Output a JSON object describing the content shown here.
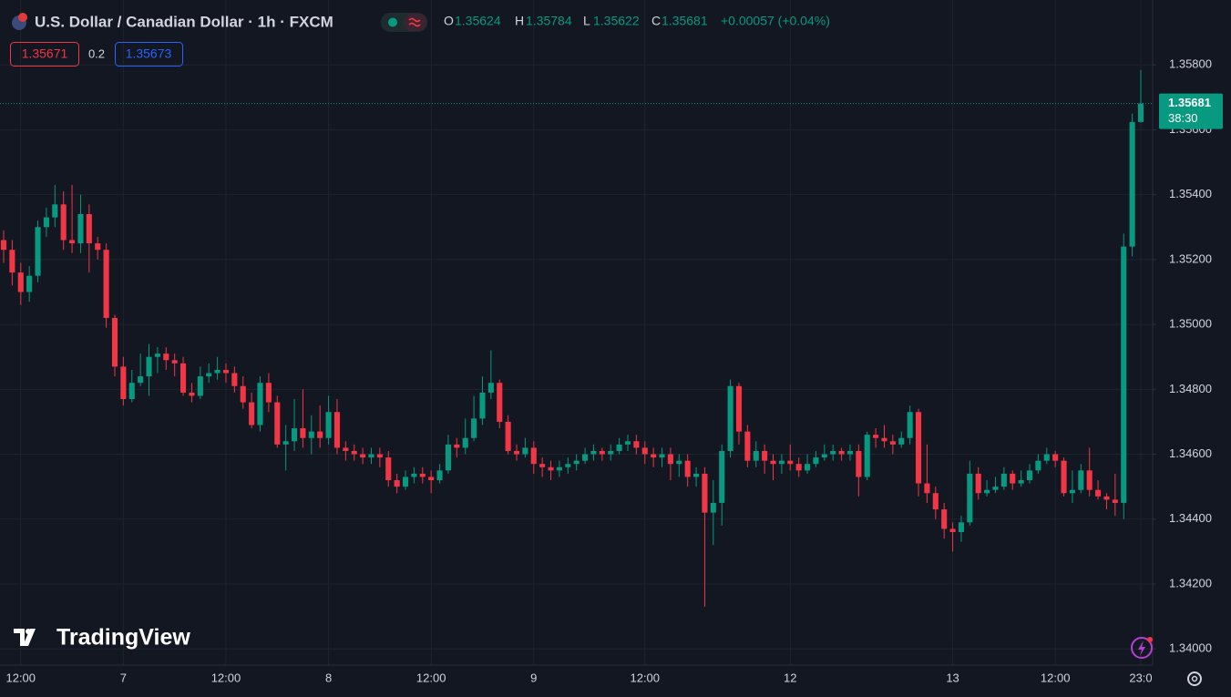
{
  "chart_data": {
    "type": "candlestick",
    "title": "U.S. Dollar / Canadian Dollar · 1h · FXCM",
    "ohlc_labels": [
      "O",
      "H",
      "L",
      "C"
    ],
    "change": "+0.00057 (+0.04%)",
    "bid": 1.35671,
    "spread": 0.2,
    "ask": 1.35673,
    "countdown": "38:30",
    "logo": "TradingView",
    "up_color": "#089981",
    "down_color": "#f23645",
    "grid": true,
    "categories": [
      null,
      null,
      "12:00",
      null,
      null,
      null,
      null,
      null,
      null,
      null,
      null,
      null,
      null,
      null,
      "7",
      null,
      null,
      null,
      null,
      null,
      null,
      null,
      null,
      null,
      null,
      null,
      "12:00",
      null,
      null,
      null,
      null,
      null,
      null,
      null,
      null,
      null,
      null,
      null,
      "8",
      null,
      null,
      null,
      null,
      null,
      null,
      null,
      null,
      null,
      null,
      null,
      "12:00",
      null,
      null,
      null,
      null,
      null,
      null,
      null,
      null,
      null,
      null,
      null,
      "9",
      null,
      null,
      null,
      null,
      null,
      null,
      null,
      null,
      null,
      null,
      null,
      null,
      "12:00",
      null,
      null,
      null,
      null,
      null,
      null,
      null,
      null,
      null,
      null,
      null,
      null,
      null,
      null,
      null,
      null,
      "12",
      null,
      null,
      null,
      null,
      null,
      null,
      null,
      null,
      null,
      null,
      null,
      null,
      null,
      null,
      null,
      null,
      null,
      null,
      "13",
      null,
      null,
      null,
      null,
      null,
      null,
      null,
      null,
      null,
      null,
      null,
      "12:00",
      null,
      null,
      null,
      null,
      null,
      null,
      null,
      null,
      null,
      "23:0"
    ],
    "open": [
      1.3526,
      1.3523,
      1.3516,
      1.351,
      1.3515,
      1.353,
      1.3533,
      1.3537,
      1.3526,
      1.3525,
      1.3534,
      1.3525,
      1.3523,
      1.3502,
      1.3487,
      1.3477,
      1.3482,
      1.3484,
      1.349,
      1.3491,
      1.3489,
      1.3488,
      1.3479,
      1.3478,
      1.3484,
      1.3485,
      1.3486,
      1.3485,
      1.3481,
      1.3476,
      1.3469,
      1.3482,
      1.3476,
      1.3463,
      1.3464,
      1.3468,
      1.3465,
      1.3467,
      1.3465,
      1.3473,
      1.3462,
      1.3461,
      1.346,
      1.3459,
      1.346,
      1.3459,
      1.3452,
      1.345,
      1.3453,
      1.3454,
      1.3453,
      1.3452,
      1.3455,
      1.3463,
      1.3462,
      1.3465,
      1.3471,
      1.3479,
      1.3482,
      1.347,
      1.3461,
      1.346,
      1.3462,
      1.3457,
      1.3456,
      1.3455,
      1.3456,
      1.3457,
      1.3458,
      1.346,
      1.3461,
      1.346,
      1.3461,
      1.3463,
      1.3464,
      1.3462,
      1.346,
      1.3459,
      1.346,
      1.3457,
      1.3458,
      1.3453,
      1.3454,
      1.3442,
      1.3445,
      1.3461,
      1.3481,
      1.3467,
      1.3458,
      1.3461,
      1.3458,
      1.3457,
      1.3458,
      1.3457,
      1.3455,
      1.3457,
      1.3459,
      1.346,
      1.3461,
      1.346,
      1.3461,
      1.3453,
      1.3466,
      1.3465,
      1.3464,
      1.3463,
      1.3465,
      1.3473,
      1.3451,
      1.3448,
      1.3443,
      1.3437,
      1.3436,
      1.3439,
      1.3454,
      1.3448,
      1.3449,
      1.345,
      1.3454,
      1.3451,
      1.3452,
      1.3455,
      1.3458,
      1.346,
      1.3458,
      1.3448,
      1.3449,
      1.3455,
      1.3449,
      1.3447,
      1.3446,
      1.3445,
      1.3524,
      1.35624
    ],
    "high": [
      1.3529,
      1.3526,
      1.3519,
      1.3518,
      1.3532,
      1.3536,
      1.3543,
      1.3541,
      1.3543,
      1.354,
      1.3537,
      1.3527,
      1.3525,
      1.3503,
      1.349,
      1.3486,
      1.3491,
      1.3494,
      1.3493,
      1.3493,
      1.3491,
      1.349,
      1.3482,
      1.3487,
      1.3488,
      1.349,
      1.3488,
      1.3487,
      1.3484,
      1.3479,
      1.3484,
      1.3485,
      1.3478,
      1.3469,
      1.3477,
      1.348,
      1.3472,
      1.3475,
      1.3478,
      1.3477,
      1.3464,
      1.3463,
      1.3462,
      1.3462,
      1.3462,
      1.3461,
      1.3454,
      1.3455,
      1.3456,
      1.3456,
      1.3455,
      1.3457,
      1.3466,
      1.3465,
      1.3471,
      1.3478,
      1.3484,
      1.3492,
      1.3483,
      1.3472,
      1.3463,
      1.3465,
      1.3464,
      1.3459,
      1.3458,
      1.3458,
      1.3459,
      1.346,
      1.3462,
      1.3463,
      1.3462,
      1.3463,
      1.3465,
      1.3466,
      1.3466,
      1.3464,
      1.3462,
      1.3462,
      1.3462,
      1.346,
      1.346,
      1.3456,
      1.3456,
      1.3452,
      1.3463,
      1.3483,
      1.3482,
      1.3469,
      1.3464,
      1.3463,
      1.346,
      1.346,
      1.3463,
      1.3459,
      1.346,
      1.3461,
      1.3463,
      1.3463,
      1.3462,
      1.3463,
      1.3463,
      1.3467,
      1.3468,
      1.3469,
      1.3466,
      1.3467,
      1.3475,
      1.3474,
      1.3463,
      1.345,
      1.3445,
      1.3439,
      1.3441,
      1.3458,
      1.3456,
      1.3452,
      1.3453,
      1.3456,
      1.3455,
      1.3455,
      1.3457,
      1.346,
      1.3462,
      1.3461,
      1.3459,
      1.3455,
      1.3457,
      1.3462,
      1.3452,
      1.3448,
      1.3454,
      1.3528,
      1.3565,
      1.35784
    ],
    "low": [
      1.3519,
      1.3512,
      1.3506,
      1.3507,
      1.3513,
      1.3527,
      1.353,
      1.3523,
      1.3522,
      1.3522,
      1.3516,
      1.352,
      1.3499,
      1.3484,
      1.3475,
      1.3476,
      1.3481,
      1.3478,
      1.3485,
      1.3486,
      1.3484,
      1.3478,
      1.3476,
      1.3477,
      1.3482,
      1.3483,
      1.3482,
      1.3479,
      1.3474,
      1.3468,
      1.3467,
      1.3473,
      1.3462,
      1.3455,
      1.3461,
      1.3462,
      1.346,
      1.3462,
      1.3463,
      1.346,
      1.3458,
      1.3458,
      1.3457,
      1.3457,
      1.3456,
      1.345,
      1.3448,
      1.3449,
      1.3451,
      1.3451,
      1.3448,
      1.3451,
      1.3454,
      1.3459,
      1.346,
      1.3464,
      1.3469,
      1.3477,
      1.3468,
      1.346,
      1.3458,
      1.3459,
      1.3454,
      1.3453,
      1.3452,
      1.3453,
      1.3454,
      1.3455,
      1.3457,
      1.3458,
      1.3458,
      1.3458,
      1.346,
      1.3461,
      1.346,
      1.3457,
      1.3456,
      1.3456,
      1.3452,
      1.3453,
      1.345,
      1.345,
      1.3413,
      1.3432,
      1.3438,
      1.3459,
      1.3463,
      1.3456,
      1.3456,
      1.3454,
      1.3452,
      1.3454,
      1.3455,
      1.3453,
      1.3454,
      1.3456,
      1.3458,
      1.3458,
      1.3458,
      1.3458,
      1.3447,
      1.3452,
      1.3462,
      1.3462,
      1.346,
      1.3462,
      1.3463,
      1.3447,
      1.3445,
      1.344,
      1.3434,
      1.343,
      1.3433,
      1.3438,
      1.3446,
      1.3447,
      1.3448,
      1.3449,
      1.3449,
      1.345,
      1.3451,
      1.3454,
      1.3457,
      1.3456,
      1.3447,
      1.3445,
      1.3448,
      1.3447,
      1.3446,
      1.3443,
      1.3441,
      1.344,
      1.3521,
      1.35622
    ],
    "close": [
      1.3523,
      1.3516,
      1.351,
      1.3515,
      1.353,
      1.3533,
      1.3537,
      1.3526,
      1.3525,
      1.3534,
      1.3525,
      1.3523,
      1.3502,
      1.3487,
      1.3477,
      1.3482,
      1.3484,
      1.349,
      1.3491,
      1.3489,
      1.3488,
      1.3479,
      1.3478,
      1.3484,
      1.3485,
      1.3486,
      1.3485,
      1.3481,
      1.3476,
      1.3469,
      1.3482,
      1.3476,
      1.3463,
      1.3464,
      1.3468,
      1.3465,
      1.3467,
      1.3465,
      1.3473,
      1.3462,
      1.3461,
      1.346,
      1.3459,
      1.346,
      1.3459,
      1.3452,
      1.345,
      1.3453,
      1.3454,
      1.3453,
      1.3452,
      1.3455,
      1.3463,
      1.3462,
      1.3465,
      1.3471,
      1.3479,
      1.3482,
      1.347,
      1.3461,
      1.346,
      1.3462,
      1.3457,
      1.3456,
      1.3455,
      1.3456,
      1.3457,
      1.3458,
      1.346,
      1.3461,
      1.346,
      1.3461,
      1.3463,
      1.3464,
      1.3462,
      1.346,
      1.3459,
      1.346,
      1.3457,
      1.3458,
      1.3453,
      1.3454,
      1.3442,
      1.3445,
      1.3461,
      1.3481,
      1.3467,
      1.3458,
      1.3461,
      1.3458,
      1.3457,
      1.3458,
      1.3457,
      1.3455,
      1.3457,
      1.3459,
      1.346,
      1.3461,
      1.346,
      1.3461,
      1.3453,
      1.3466,
      1.3465,
      1.3464,
      1.3463,
      1.3465,
      1.3473,
      1.3451,
      1.3448,
      1.3443,
      1.3437,
      1.3436,
      1.3439,
      1.3454,
      1.3448,
      1.3449,
      1.345,
      1.3454,
      1.3451,
      1.3452,
      1.3455,
      1.3458,
      1.346,
      1.3458,
      1.3448,
      1.3449,
      1.3455,
      1.3449,
      1.3447,
      1.3446,
      1.3445,
      1.3524,
      1.35624,
      1.35681
    ],
    "ylim": [
      1.3395,
      1.36
    ],
    "yticks": [
      {
        "value": 1.34,
        "label": "1.34000"
      },
      {
        "value": 1.342,
        "label": "1.34200"
      },
      {
        "value": 1.344,
        "label": "1.34400"
      },
      {
        "value": 1.346,
        "label": "1.34600"
      },
      {
        "value": 1.348,
        "label": "1.34800"
      },
      {
        "value": 1.35,
        "label": "1.35000"
      },
      {
        "value": 1.352,
        "label": "1.35200"
      },
      {
        "value": 1.354,
        "label": "1.35400"
      },
      {
        "value": 1.356,
        "label": "1.35600"
      },
      {
        "value": 1.358,
        "label": "1.35800"
      }
    ]
  }
}
